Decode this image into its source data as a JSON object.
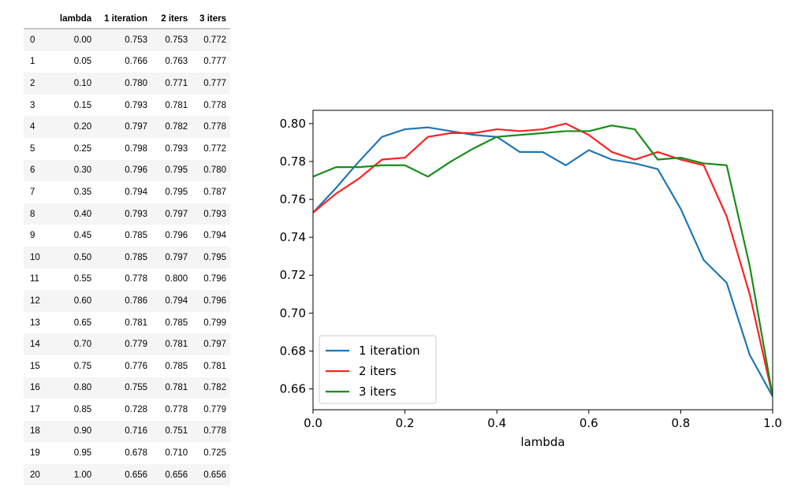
{
  "table": {
    "headers": [
      "",
      "lambda",
      "1 iteration",
      "2 iters",
      "3 iters"
    ],
    "rows": [
      [
        "0",
        "0.00",
        "0.753",
        "0.753",
        "0.772"
      ],
      [
        "1",
        "0.05",
        "0.766",
        "0.763",
        "0.777"
      ],
      [
        "2",
        "0.10",
        "0.780",
        "0.771",
        "0.777"
      ],
      [
        "3",
        "0.15",
        "0.793",
        "0.781",
        "0.778"
      ],
      [
        "4",
        "0.20",
        "0.797",
        "0.782",
        "0.778"
      ],
      [
        "5",
        "0.25",
        "0.798",
        "0.793",
        "0.772"
      ],
      [
        "6",
        "0.30",
        "0.796",
        "0.795",
        "0.780"
      ],
      [
        "7",
        "0.35",
        "0.794",
        "0.795",
        "0.787"
      ],
      [
        "8",
        "0.40",
        "0.793",
        "0.797",
        "0.793"
      ],
      [
        "9",
        "0.45",
        "0.785",
        "0.796",
        "0.794"
      ],
      [
        "10",
        "0.50",
        "0.785",
        "0.797",
        "0.795"
      ],
      [
        "11",
        "0.55",
        "0.778",
        "0.800",
        "0.796"
      ],
      [
        "12",
        "0.60",
        "0.786",
        "0.794",
        "0.796"
      ],
      [
        "13",
        "0.65",
        "0.781",
        "0.785",
        "0.799"
      ],
      [
        "14",
        "0.70",
        "0.779",
        "0.781",
        "0.797"
      ],
      [
        "15",
        "0.75",
        "0.776",
        "0.785",
        "0.781"
      ],
      [
        "16",
        "0.80",
        "0.755",
        "0.781",
        "0.782"
      ],
      [
        "17",
        "0.85",
        "0.728",
        "0.778",
        "0.779"
      ],
      [
        "18",
        "0.90",
        "0.716",
        "0.751",
        "0.778"
      ],
      [
        "19",
        "0.95",
        "0.678",
        "0.710",
        "0.725"
      ],
      [
        "20",
        "1.00",
        "0.656",
        "0.656",
        "0.656"
      ]
    ]
  },
  "chart_data": {
    "type": "line",
    "title": "",
    "xlabel": "lambda",
    "ylabel": "",
    "xlim": [
      0.0,
      1.0
    ],
    "ylim": [
      0.649,
      0.807
    ],
    "xticks": [
      "0.0",
      "0.2",
      "0.4",
      "0.6",
      "0.8",
      "1.0"
    ],
    "yticks": [
      "0.66",
      "0.68",
      "0.70",
      "0.72",
      "0.74",
      "0.76",
      "0.78",
      "0.80"
    ],
    "grid": false,
    "legend_position": "lower-left",
    "x": [
      0.0,
      0.05,
      0.1,
      0.15,
      0.2,
      0.25,
      0.3,
      0.35,
      0.4,
      0.45,
      0.5,
      0.55,
      0.6,
      0.65,
      0.7,
      0.75,
      0.8,
      0.85,
      0.9,
      0.95,
      1.0
    ],
    "series": [
      {
        "name": "1 iteration",
        "color": "#1f77b4",
        "values": [
          0.753,
          0.766,
          0.78,
          0.793,
          0.797,
          0.798,
          0.796,
          0.794,
          0.793,
          0.785,
          0.785,
          0.778,
          0.786,
          0.781,
          0.779,
          0.776,
          0.755,
          0.728,
          0.716,
          0.678,
          0.656
        ]
      },
      {
        "name": "2 iters",
        "color": "#ff2222",
        "values": [
          0.753,
          0.763,
          0.771,
          0.781,
          0.782,
          0.793,
          0.795,
          0.795,
          0.797,
          0.796,
          0.797,
          0.8,
          0.794,
          0.785,
          0.781,
          0.785,
          0.781,
          0.778,
          0.751,
          0.71,
          0.656
        ]
      },
      {
        "name": "3 iters",
        "color": "#1a8c1a",
        "values": [
          0.772,
          0.777,
          0.777,
          0.778,
          0.778,
          0.772,
          0.78,
          0.787,
          0.793,
          0.794,
          0.795,
          0.796,
          0.796,
          0.799,
          0.797,
          0.781,
          0.782,
          0.779,
          0.778,
          0.725,
          0.656
        ]
      }
    ]
  }
}
